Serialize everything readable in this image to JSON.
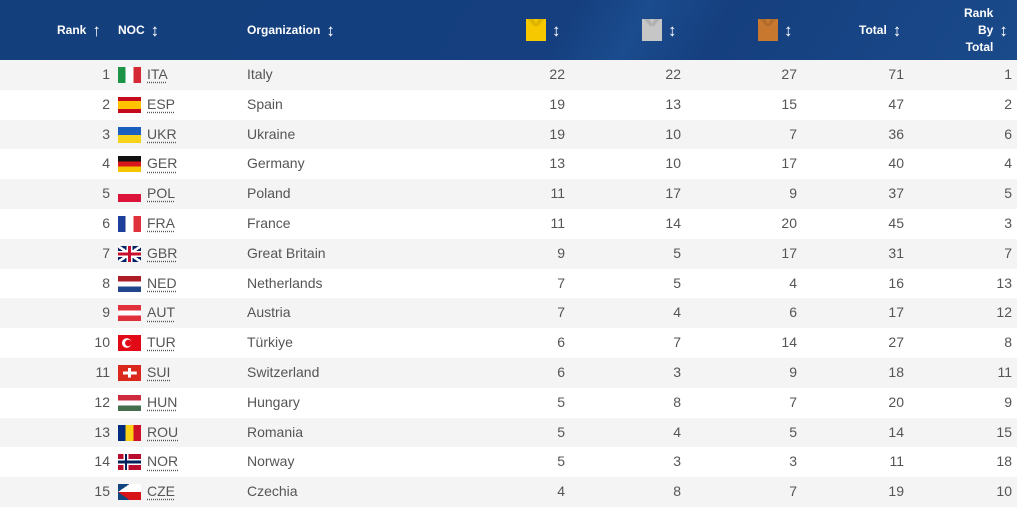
{
  "header": {
    "rank": "Rank",
    "noc": "NOC",
    "organization": "Organization",
    "total": "Total",
    "rank_by_total": [
      "Rank",
      "By",
      "Total"
    ],
    "medals": {
      "gold": "#f5c800",
      "silver": "#c6c6c6",
      "bronze": "#c8782f"
    }
  },
  "rows": [
    {
      "rank": "1",
      "noc": "ITA",
      "org": "Italy",
      "gold": "22",
      "silver": "22",
      "bronze": "27",
      "total": "71",
      "rbt": "1",
      "flag": "v:#1e9447,#fff,#d32a36"
    },
    {
      "rank": "2",
      "noc": "ESP",
      "org": "Spain",
      "gold": "19",
      "silver": "13",
      "bronze": "15",
      "total": "47",
      "rbt": "2",
      "flag": "esp"
    },
    {
      "rank": "3",
      "noc": "UKR",
      "org": "Ukraine",
      "gold": "19",
      "silver": "10",
      "bronze": "7",
      "total": "36",
      "rbt": "6",
      "flag": "h:#1a5fbf,#f7d21a"
    },
    {
      "rank": "4",
      "noc": "GER",
      "org": "Germany",
      "gold": "13",
      "silver": "10",
      "bronze": "17",
      "total": "40",
      "rbt": "4",
      "flag": "h:#111,#d8161b,#f5c400"
    },
    {
      "rank": "5",
      "noc": "POL",
      "org": "Poland",
      "gold": "11",
      "silver": "17",
      "bronze": "9",
      "total": "37",
      "rbt": "5",
      "flag": "h:#f4f4f4,#dc143c"
    },
    {
      "rank": "6",
      "noc": "FRA",
      "org": "France",
      "gold": "11",
      "silver": "14",
      "bronze": "20",
      "total": "45",
      "rbt": "3",
      "flag": "v:#1c3f9a,#fff,#e0303c"
    },
    {
      "rank": "7",
      "noc": "GBR",
      "org": "Great Britain",
      "gold": "9",
      "silver": "5",
      "bronze": "17",
      "total": "31",
      "rbt": "7",
      "flag": "gbr"
    },
    {
      "rank": "8",
      "noc": "NED",
      "org": "Netherlands",
      "gold": "7",
      "silver": "5",
      "bronze": "4",
      "total": "16",
      "rbt": "13",
      "flag": "h:#ae1c28,#fff,#21468b"
    },
    {
      "rank": "9",
      "noc": "AUT",
      "org": "Austria",
      "gold": "7",
      "silver": "4",
      "bronze": "6",
      "total": "17",
      "rbt": "12",
      "flag": "h:#e0303c,#fff,#e0303c"
    },
    {
      "rank": "10",
      "noc": "TUR",
      "org": "Türkiye",
      "gold": "6",
      "silver": "7",
      "bronze": "14",
      "total": "27",
      "rbt": "8",
      "flag": "tur"
    },
    {
      "rank": "11",
      "noc": "SUI",
      "org": "Switzerland",
      "gold": "6",
      "silver": "3",
      "bronze": "9",
      "total": "18",
      "rbt": "11",
      "flag": "sui"
    },
    {
      "rank": "12",
      "noc": "HUN",
      "org": "Hungary",
      "gold": "5",
      "silver": "8",
      "bronze": "7",
      "total": "20",
      "rbt": "9",
      "flag": "h:#cd2a3e,#fff,#436f4d"
    },
    {
      "rank": "13",
      "noc": "ROU",
      "org": "Romania",
      "gold": "5",
      "silver": "4",
      "bronze": "5",
      "total": "14",
      "rbt": "15",
      "flag": "v:#002b7f,#fcd116,#ce1126"
    },
    {
      "rank": "14",
      "noc": "NOR",
      "org": "Norway",
      "gold": "5",
      "silver": "3",
      "bronze": "3",
      "total": "11",
      "rbt": "18",
      "flag": "nor"
    },
    {
      "rank": "15",
      "noc": "CZE",
      "org": "Czechia",
      "gold": "4",
      "silver": "8",
      "bronze": "7",
      "total": "19",
      "rbt": "10",
      "flag": "cze"
    }
  ]
}
